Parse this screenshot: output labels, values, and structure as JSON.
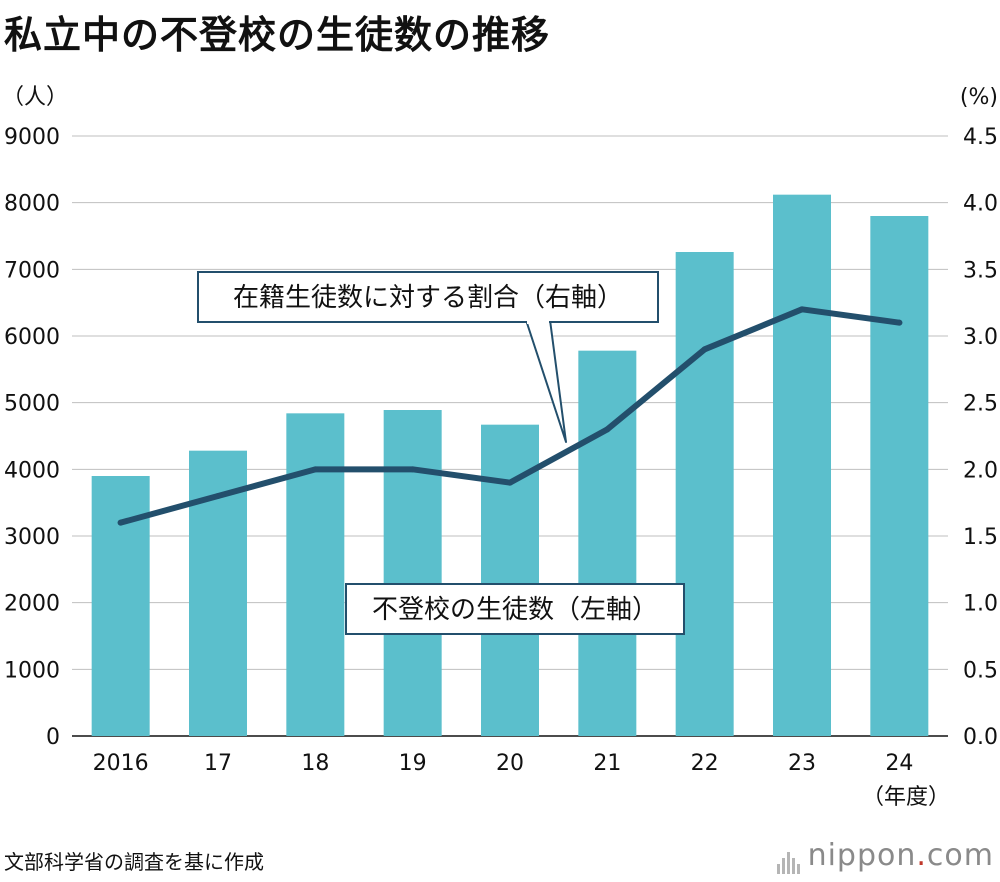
{
  "title": "私立中の不登校の生徒数の推移",
  "source": "文部科学省の調査を基に作成",
  "logo": {
    "name": "nippon",
    "dot": ".",
    "suffix": "com"
  },
  "colors": {
    "bar": "#5bbfcc",
    "line": "#234f6c",
    "grid": "#bfbfbf",
    "callout_border": "#234f6c"
  },
  "chart_data": {
    "type": "bar",
    "categories": [
      "2016",
      "17",
      "18",
      "19",
      "20",
      "21",
      "22",
      "23",
      "24"
    ],
    "x_unit_label": "（年度）",
    "left_axis": {
      "unit_label": "（人）",
      "ylim": [
        0,
        9000
      ],
      "ticks": [
        "0",
        "1000",
        "2000",
        "3000",
        "4000",
        "5000",
        "6000",
        "7000",
        "8000",
        "9000"
      ]
    },
    "right_axis": {
      "unit_label": "(%)",
      "ylim": [
        0,
        4.5
      ],
      "ticks": [
        "0.0",
        "0.5",
        "1.0",
        "1.5",
        "2.0",
        "2.5",
        "3.0",
        "3.5",
        "4.0",
        "4.5"
      ]
    },
    "grid": true,
    "series": [
      {
        "name": "不登校の生徒数（左軸）",
        "type": "bar",
        "axis": "left",
        "values": [
          3900,
          4280,
          4840,
          4890,
          4670,
          5780,
          7260,
          8120,
          7800
        ]
      },
      {
        "name": "在籍生徒数に対する割合（右軸）",
        "type": "line",
        "axis": "right",
        "values": [
          1.6,
          1.8,
          2.0,
          2.0,
          1.9,
          2.3,
          2.9,
          3.2,
          3.1
        ]
      }
    ]
  }
}
